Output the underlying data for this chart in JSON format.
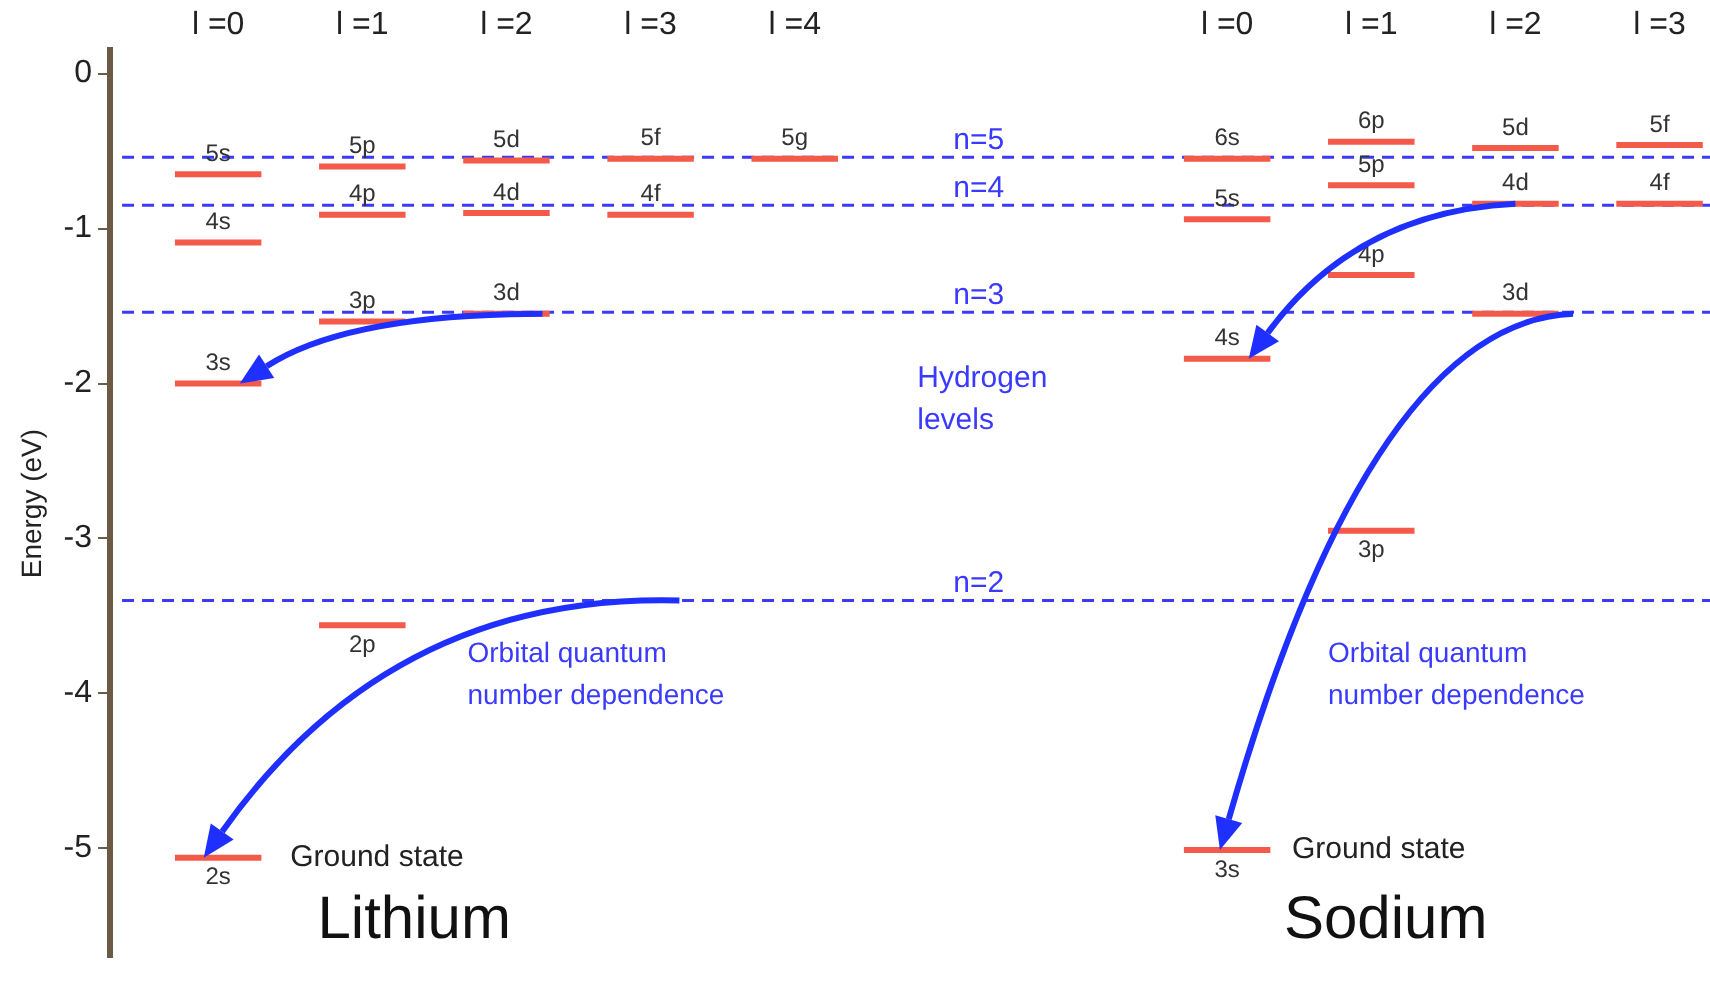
{
  "chart_data": {
    "type": "line",
    "ylabel": "Energy (eV)",
    "legend": false,
    "xlim": [
      -0.75,
      10.35
    ],
    "xticks": [
      {
        "value": 0,
        "label": "l =0"
      },
      {
        "value": 1,
        "label": "l =1"
      },
      {
        "value": 2,
        "label": "l =2"
      },
      {
        "value": 3,
        "label": "l =3"
      },
      {
        "value": 4,
        "label": "l =4"
      }
    ],
    "x2lim": [
      -7.75,
      3.35
    ],
    "x2ticks": [
      {
        "value": 0,
        "label": "l =0"
      },
      {
        "value": 1,
        "label": "l =1"
      },
      {
        "value": 2,
        "label": "l =2"
      },
      {
        "value": 3,
        "label": "l =3"
      }
    ],
    "series": [
      {
        "name": "2s",
        "color": "#f45a4a",
        "x": [
          -0.3,
          0.3
        ],
        "values": [
          -5.06,
          -5.06
        ]
      },
      {
        "name": "2p",
        "color": "#f45a4a",
        "x": [
          0.7,
          1.3
        ],
        "values": [
          -3.56,
          -3.56
        ]
      },
      {
        "name": "3s",
        "color": "#f45a4a",
        "x": [
          -0.3,
          0.3
        ],
        "values": [
          -2.0,
          -2.0
        ]
      },
      {
        "name": "3p",
        "color": "#f45a4a",
        "x": [
          0.7,
          1.3
        ],
        "values": [
          -1.6,
          -1.6
        ]
      },
      {
        "name": "3d",
        "color": "#f45a4a",
        "x": [
          1.7,
          2.3
        ],
        "values": [
          -1.55,
          -1.55
        ]
      },
      {
        "name": "4s",
        "color": "#f45a4a",
        "x": [
          -0.3,
          0.3
        ],
        "values": [
          -1.09,
          -1.09
        ]
      },
      {
        "name": "4p",
        "color": "#f45a4a",
        "x": [
          0.7,
          1.3
        ],
        "values": [
          -0.91,
          -0.91
        ]
      },
      {
        "name": "4d",
        "color": "#f45a4a",
        "x": [
          1.7,
          2.3
        ],
        "values": [
          -0.9,
          -0.9
        ]
      },
      {
        "name": "4f",
        "color": "#f45a4a",
        "x": [
          2.7,
          3.3
        ],
        "values": [
          -0.91,
          -0.91
        ]
      },
      {
        "name": "5s",
        "color": "#f45a4a",
        "x": [
          -0.3,
          0.3
        ],
        "values": [
          -0.65,
          -0.65
        ]
      },
      {
        "name": "5p",
        "color": "#f45a4a",
        "x": [
          0.7,
          1.3
        ],
        "values": [
          -0.6,
          -0.6
        ]
      },
      {
        "name": "5d",
        "color": "#f45a4a",
        "x": [
          1.7,
          2.3
        ],
        "values": [
          -0.56,
          -0.56
        ]
      },
      {
        "name": "5f",
        "color": "#f45a4a",
        "x": [
          2.7,
          3.3
        ],
        "values": [
          -0.55,
          -0.55
        ]
      },
      {
        "name": "5g",
        "color": "#f45a4a",
        "x": [
          3.7,
          4.3
        ],
        "values": [
          -0.55,
          -0.55
        ]
      },
      {
        "name": "3s",
        "color": "#f45a4a",
        "axis": "x2",
        "x": [
          -0.3,
          0.3
        ],
        "values": [
          -5.01,
          -5.01
        ]
      },
      {
        "name": "3p",
        "color": "#f45a4a",
        "axis": "x2",
        "x": [
          0.7,
          1.3
        ],
        "values": [
          -2.95,
          -2.95
        ]
      },
      {
        "name": "3d",
        "color": "#f45a4a",
        "axis": "x2",
        "x": [
          1.7,
          2.3
        ],
        "values": [
          -1.55,
          -1.55
        ]
      },
      {
        "name": "4s",
        "color": "#f45a4a",
        "axis": "x2",
        "x": [
          -0.3,
          0.3
        ],
        "values": [
          -1.84,
          -1.84
        ]
      },
      {
        "name": "4p",
        "color": "#f45a4a",
        "axis": "x2",
        "x": [
          0.7,
          1.3
        ],
        "values": [
          -1.3,
          -1.3
        ]
      },
      {
        "name": "4d",
        "color": "#f45a4a",
        "axis": "x2",
        "x": [
          1.7,
          2.3
        ],
        "values": [
          -0.84,
          -0.84
        ]
      },
      {
        "name": "4f",
        "color": "#f45a4a",
        "axis": "x2",
        "x": [
          2.7,
          3.3
        ],
        "values": [
          -0.84,
          -0.84
        ]
      },
      {
        "name": "5s",
        "color": "#f45a4a",
        "axis": "x2",
        "x": [
          -0.3,
          0.3
        ],
        "values": [
          -0.94,
          -0.94
        ]
      },
      {
        "name": "5p",
        "color": "#f45a4a",
        "axis": "x2",
        "x": [
          0.7,
          1.3
        ],
        "values": [
          -0.72,
          -0.72
        ]
      },
      {
        "name": "5d",
        "color": "#f45a4a",
        "axis": "x2",
        "x": [
          1.7,
          2.3
        ],
        "values": [
          -0.48,
          -0.48
        ]
      },
      {
        "name": "5f",
        "color": "#f45a4a",
        "axis": "x2",
        "x": [
          2.7,
          3.3
        ],
        "values": [
          -0.46,
          -0.46
        ]
      },
      {
        "name": "6s",
        "color": "#f45a4a",
        "axis": "x2",
        "x": [
          -0.3,
          0.3
        ],
        "values": [
          -0.55,
          -0.55
        ]
      },
      {
        "name": "6p",
        "color": "#f45a4a",
        "axis": "x2",
        "x": [
          0.7,
          1.3
        ],
        "values": [
          -0.44,
          -0.44
        ]
      }
    ],
    "ylim": [
      -5.7,
      0.15
    ],
    "yticks": [
      0,
      -1,
      -2,
      -3,
      -4,
      -5
    ],
    "grid": false,
    "ref_lines": [
      {
        "axis": "y",
        "value": -3.4,
        "color": "#3a3aff",
        "line_style": "dashed"
      },
      {
        "axis": "y",
        "value": -1.54,
        "color": "#3a3aff",
        "line_style": "dashed"
      },
      {
        "axis": "y",
        "value": -0.85,
        "color": "#3a3aff",
        "line_style": "dashed"
      },
      {
        "axis": "y",
        "value": -0.54,
        "color": "#3a3aff",
        "line_style": "dashed"
      }
    ],
    "annotations": [
      "Hydrogen levels",
      "Orbital quantum number dependence",
      "Orbital quantum number dependence",
      "Ground state",
      "Ground state",
      "Lithium",
      "Sodium",
      {
        "text": "n=2",
        "y": -3.4
      },
      {
        "text": "n=3",
        "y": -1.54
      },
      {
        "text": "n=4",
        "y": -0.85
      },
      {
        "text": "n=5",
        "y": -0.54
      }
    ]
  }
}
